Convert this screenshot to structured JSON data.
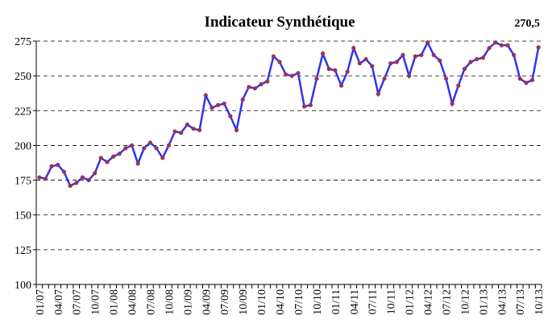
{
  "chart_data": {
    "type": "line",
    "title": "Indicateur Synthétique",
    "categories": [
      "01/07",
      null,
      null,
      "04/07",
      null,
      null,
      "07/07",
      null,
      null,
      "10/07",
      null,
      null,
      "01/08",
      null,
      null,
      "04/08",
      null,
      null,
      "07/08",
      null,
      null,
      "10/08",
      null,
      null,
      "01/09",
      null,
      null,
      "04/09",
      null,
      null,
      "07/09",
      null,
      null,
      "10/09",
      null,
      null,
      "01/10",
      null,
      null,
      "04/10",
      null,
      null,
      "07/10",
      null,
      null,
      "10/10",
      null,
      null,
      "01/11",
      null,
      null,
      "04/11",
      null,
      null,
      "07/11",
      null,
      null,
      "10/11",
      null,
      null,
      "01/12",
      null,
      null,
      "04/12",
      null,
      null,
      "07/12",
      null,
      null,
      "10/12",
      null,
      null,
      "01/13",
      null,
      null,
      "04/13",
      null,
      null,
      "07/13",
      null,
      null,
      "10/13"
    ],
    "series": [
      {
        "color": "#3333ee",
        "marker_color": "#993355",
        "values": [
          177,
          176,
          185,
          186,
          181,
          171,
          173,
          177,
          175,
          180,
          191,
          188,
          192,
          194,
          198,
          200,
          187,
          198,
          202,
          198,
          191,
          200,
          210,
          209,
          215,
          212,
          211,
          236,
          227,
          229,
          230,
          221,
          211,
          233,
          242,
          241,
          244,
          246,
          264,
          260,
          251,
          250,
          252,
          228,
          229,
          248,
          266,
          255,
          254,
          243,
          253,
          270,
          259,
          262,
          257,
          237,
          248,
          259,
          260,
          265,
          250,
          264,
          265,
          274,
          265,
          261,
          248,
          230,
          243,
          255,
          260,
          262,
          263,
          270,
          274,
          272,
          272,
          265,
          248,
          245,
          247,
          270.5
        ],
        "value_labels": [
          null,
          null,
          null,
          null,
          null,
          null,
          null,
          null,
          null,
          null,
          null,
          null,
          null,
          null,
          null,
          null,
          null,
          null,
          null,
          null,
          null,
          null,
          null,
          null,
          null,
          null,
          null,
          null,
          null,
          null,
          null,
          null,
          null,
          null,
          null,
          null,
          null,
          null,
          null,
          null,
          null,
          null,
          null,
          null,
          null,
          null,
          null,
          null,
          null,
          null,
          null,
          null,
          null,
          null,
          null,
          null,
          null,
          null,
          null,
          null,
          null,
          null,
          null,
          null,
          null,
          null,
          null,
          null,
          null,
          null,
          null,
          null,
          null,
          null,
          null,
          null,
          null,
          null,
          null,
          null,
          null,
          "270,5"
        ]
      }
    ],
    "ylim": [
      100,
      275
    ],
    "yticks": [
      100,
      125,
      150,
      175,
      200,
      225,
      250,
      275
    ],
    "grid": true
  }
}
